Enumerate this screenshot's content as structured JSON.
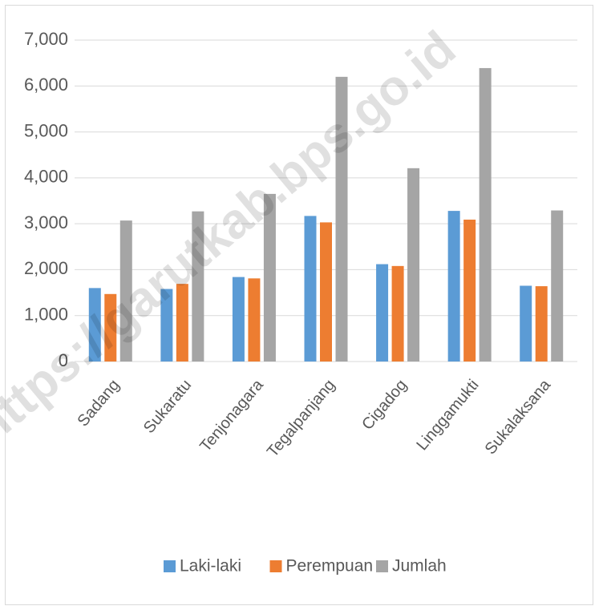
{
  "chart_data": {
    "type": "bar",
    "categories": [
      "Sadang",
      "Sukaratu",
      "Tenjonagara",
      "Tegalpanjang",
      "Cigadog",
      "Linggamukti",
      "Sukalaksana"
    ],
    "series": [
      {
        "name": "Laki-laki",
        "color": "#5b9bd5",
        "values": [
          1600,
          1580,
          1840,
          3170,
          2120,
          3280,
          1650
        ]
      },
      {
        "name": "Perempuan",
        "color": "#ed7d31",
        "values": [
          1470,
          1690,
          1810,
          3030,
          2080,
          3090,
          1640
        ]
      },
      {
        "name": "Jumlah",
        "color": "#a5a5a5",
        "values": [
          3070,
          3270,
          3650,
          6200,
          4210,
          6390,
          3290
        ]
      }
    ],
    "ylim": [
      0,
      7000
    ],
    "yticks": [
      0,
      {
        "value": 1000,
        "label": "1,000"
      },
      {
        "value": 2000,
        "label": "2,000"
      },
      {
        "value": 3000,
        "label": "3,000"
      },
      {
        "value": 4000,
        "label": "4,000"
      },
      {
        "value": 5000,
        "label": "5,000"
      },
      {
        "value": 6000,
        "label": "6,000"
      },
      {
        "value": 7000,
        "label": "7,000"
      }
    ],
    "grid": true,
    "legend": "bottom",
    "watermark": "https://garutkab.bps.go.id"
  }
}
